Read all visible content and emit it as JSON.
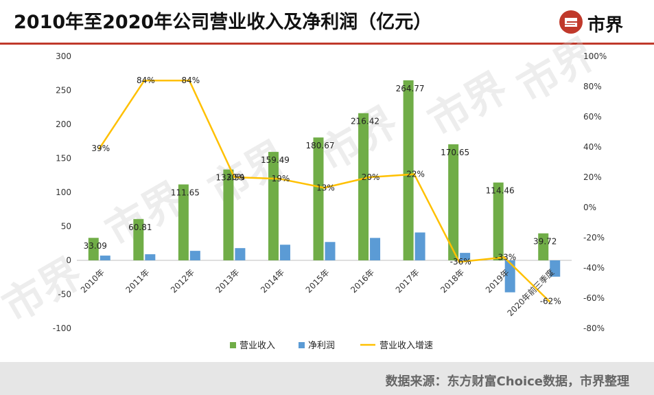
{
  "title": "2010年至2020年公司营业收入及净利润（亿元）",
  "logo_text": "市界",
  "source": "数据来源：东方财富Choice数据，市界整理",
  "watermark": "市界",
  "colors": {
    "revenue": "#70ad47",
    "net_profit": "#5b9bd5",
    "growth": "#ffc000",
    "logo_red": "#c0392b"
  },
  "chart_data": {
    "type": "bar",
    "title": "2010年至2020年公司营业收入及净利润（亿元）",
    "categories": [
      "2010年",
      "2011年",
      "2012年",
      "2013年",
      "2014年",
      "2015年",
      "2016年",
      "2017年",
      "2018年",
      "2019年",
      "2020年前三季度"
    ],
    "series": [
      {
        "name": "营业收入",
        "type": "bar",
        "axis": "left",
        "values": [
          33.09,
          60.81,
          111.65,
          133.59,
          159.49,
          180.67,
          216.42,
          264.77,
          170.65,
          114.46,
          39.72
        ],
        "labels": [
          "33.09",
          "60.81",
          "111.65",
          "133.59",
          "159.49",
          "180.67",
          "216.42",
          "264.77",
          "170.65",
          "114.46",
          "39.72"
        ]
      },
      {
        "name": "净利润",
        "type": "bar",
        "axis": "left",
        "values": [
          7,
          9,
          14,
          18,
          23,
          27,
          33,
          41,
          11,
          -47,
          -24
        ]
      },
      {
        "name": "营业收入增速",
        "type": "line",
        "axis": "right",
        "values": [
          39,
          84,
          84,
          20,
          19,
          13,
          20,
          22,
          -36,
          -33,
          -62
        ],
        "labels": [
          "39%",
          "84%",
          "84%",
          "20%",
          "19%",
          "13%",
          "20%",
          "22%",
          "-36%",
          "-33%",
          "-62%"
        ]
      }
    ],
    "y_left": {
      "range": [
        -100,
        300
      ],
      "ticks": [
        "-100",
        "-50",
        "0",
        "50",
        "100",
        "150",
        "200",
        "250",
        "300"
      ]
    },
    "y_right": {
      "range": [
        -80,
        100
      ],
      "ticks": [
        "-80%",
        "-60%",
        "-40%",
        "-20%",
        "0%",
        "20%",
        "40%",
        "60%",
        "80%",
        "100%"
      ]
    },
    "grid": false,
    "legend_position": "bottom"
  }
}
